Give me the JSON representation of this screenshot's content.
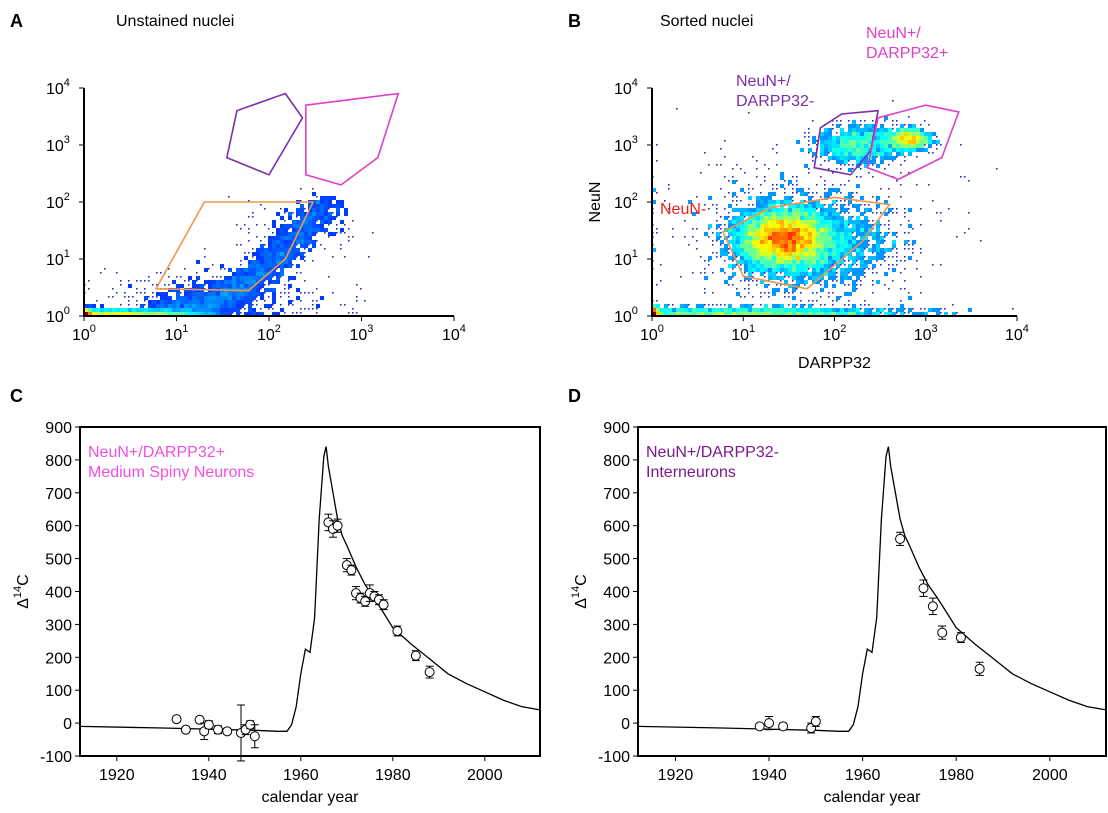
{
  "panels": {
    "A": {
      "letter": "A",
      "title": "Unstained nuclei"
    },
    "B": {
      "letter": "B",
      "title": "Sorted nuclei"
    },
    "C": {
      "letter": "C"
    },
    "D": {
      "letter": "D"
    }
  },
  "colors": {
    "orange_gate": "#f0964a",
    "purple_gate": "#7b2fa8",
    "magenta_gate": "#e040c8",
    "neun_minus": "#e8231c",
    "msn_label": "#f050e0",
    "interneuron_label": "#7a1a8a"
  },
  "chart_data": [
    {
      "panel": "A",
      "type": "scatter",
      "subtype": "flow-cytometry density plot",
      "x_scale": "log",
      "y_scale": "log",
      "xlim": [
        1,
        10000
      ],
      "ylim": [
        1,
        10000
      ],
      "x_ticks": [
        {
          "base": "10",
          "exp": "0"
        },
        {
          "base": "10",
          "exp": "1"
        },
        {
          "base": "10",
          "exp": "2"
        },
        {
          "base": "10",
          "exp": "3"
        },
        {
          "base": "10",
          "exp": "4"
        }
      ],
      "y_ticks": [
        {
          "base": "10",
          "exp": "0"
        },
        {
          "base": "10",
          "exp": "1"
        },
        {
          "base": "10",
          "exp": "2"
        },
        {
          "base": "10",
          "exp": "3"
        },
        {
          "base": "10",
          "exp": "4"
        }
      ],
      "xlabel": "",
      "ylabel": "",
      "gates": [
        {
          "color": "orange",
          "points": [
            [
              20,
              100
            ],
            [
              300,
              100
            ],
            [
              150,
              10
            ],
            [
              60,
              2.8
            ],
            [
              6,
              3
            ]
          ]
        },
        {
          "color": "purple",
          "points": [
            [
              150,
              8000
            ],
            [
              230,
              3000
            ],
            [
              100,
              300
            ],
            [
              35,
              600
            ],
            [
              45,
              4000
            ]
          ]
        },
        {
          "color": "magenta",
          "points": [
            [
              250,
              5000
            ],
            [
              2500,
              8000
            ],
            [
              1500,
              600
            ],
            [
              600,
              200
            ],
            [
              250,
              300
            ]
          ]
        }
      ]
    },
    {
      "panel": "B",
      "type": "scatter",
      "subtype": "flow-cytometry density plot",
      "x_scale": "log",
      "y_scale": "log",
      "xlim": [
        1,
        10000
      ],
      "ylim": [
        1,
        10000
      ],
      "x_ticks": [
        {
          "base": "10",
          "exp": "0"
        },
        {
          "base": "10",
          "exp": "1"
        },
        {
          "base": "10",
          "exp": "2"
        },
        {
          "base": "10",
          "exp": "3"
        },
        {
          "base": "10",
          "exp": "4"
        }
      ],
      "y_ticks": [
        {
          "base": "10",
          "exp": "0"
        },
        {
          "base": "10",
          "exp": "1"
        },
        {
          "base": "10",
          "exp": "2"
        },
        {
          "base": "10",
          "exp": "3"
        },
        {
          "base": "10",
          "exp": "4"
        }
      ],
      "xlabel": "DARPP32",
      "ylabel": "NeuN",
      "gate_labels": [
        {
          "text": "NeuN-",
          "color": "red"
        },
        {
          "text": "NeuN+/",
          "text2": "DARPP32-",
          "color": "purple"
        },
        {
          "text": "NeuN+/",
          "text2": "DARPP32+",
          "color": "magenta"
        }
      ],
      "gates": [
        {
          "color": "orange",
          "points": [
            [
              20,
              80
            ],
            [
              100,
              120
            ],
            [
              400,
              90
            ],
            [
              200,
              20
            ],
            [
              50,
              3
            ],
            [
              10,
              5
            ],
            [
              6,
              30
            ]
          ]
        },
        {
          "color": "purple",
          "points": [
            [
              120,
              3500
            ],
            [
              300,
              4000
            ],
            [
              250,
              800
            ],
            [
              150,
              300
            ],
            [
              60,
              400
            ],
            [
              70,
              2000
            ]
          ]
        },
        {
          "color": "magenta",
          "points": [
            [
              300,
              3000
            ],
            [
              1000,
              5000
            ],
            [
              2300,
              3800
            ],
            [
              1500,
              600
            ],
            [
              500,
              250
            ],
            [
              230,
              400
            ]
          ]
        }
      ]
    },
    {
      "panel": "C",
      "type": "scatter",
      "annotation_lines": [
        "NeuN+/DARPP32+",
        "Medium Spiny Neurons"
      ],
      "xlabel": "calendar year",
      "ylabel": "Δ",
      "ylabel_sup": "14",
      "ylabel_tail": "C",
      "xlim": [
        1912,
        2012
      ],
      "ylim": [
        -100,
        900
      ],
      "x_ticks": [
        "1920",
        "1940",
        "1960",
        "1980",
        "2000"
      ],
      "y_ticks": [
        "-100",
        "0",
        "100",
        "200",
        "300",
        "400",
        "500",
        "600",
        "700",
        "800",
        "900"
      ],
      "series": [
        {
          "curve": true,
          "x": [
            1912,
            1930,
            1950,
            1955,
            1957,
            1958,
            1959,
            1960,
            1961,
            1962,
            1963,
            1964,
            1965,
            1965.5,
            1966,
            1967,
            1968,
            1969,
            1970,
            1972,
            1974,
            1976,
            1978,
            1980,
            1984,
            1988,
            1992,
            1996,
            2000,
            2004,
            2008,
            2012
          ],
          "y": [
            -10,
            -15,
            -22,
            -25,
            -25,
            -5,
            50,
            150,
            225,
            215,
            320,
            620,
            810,
            840,
            780,
            700,
            620,
            570,
            540,
            475,
            420,
            380,
            335,
            290,
            240,
            195,
            150,
            120,
            95,
            70,
            50,
            40
          ]
        },
        {
          "points": true,
          "x": [
            1933,
            1935,
            1938,
            1939,
            1940,
            1942,
            1944,
            1947,
            1948,
            1949,
            1950,
            1966,
            1967,
            1968,
            1970,
            1971,
            1972,
            1973,
            1974,
            1975,
            1976,
            1977,
            1978,
            1981,
            1985,
            1988
          ],
          "y": [
            12,
            -20,
            10,
            -25,
            -5,
            -20,
            -25,
            -30,
            -20,
            -5,
            -40,
            610,
            590,
            600,
            480,
            465,
            395,
            380,
            370,
            395,
            385,
            375,
            360,
            280,
            205,
            155
          ],
          "err": [
            8,
            8,
            8,
            25,
            12,
            12,
            8,
            85,
            15,
            12,
            35,
            25,
            25,
            20,
            20,
            15,
            20,
            15,
            15,
            25,
            15,
            15,
            15,
            15,
            15,
            18
          ]
        }
      ]
    },
    {
      "panel": "D",
      "type": "scatter",
      "annotation_lines": [
        "NeuN+/DARPP32-",
        "Interneurons"
      ],
      "xlabel": "calendar year",
      "ylabel": "Δ",
      "ylabel_sup": "14",
      "ylabel_tail": "C",
      "xlim": [
        1912,
        2012
      ],
      "ylim": [
        -100,
        900
      ],
      "x_ticks": [
        "1920",
        "1940",
        "1960",
        "1980",
        "2000"
      ],
      "y_ticks": [
        "-100",
        "0",
        "100",
        "200",
        "300",
        "400",
        "500",
        "600",
        "700",
        "800",
        "900"
      ],
      "series": [
        {
          "curve": true,
          "x": [
            1912,
            1930,
            1950,
            1955,
            1957,
            1958,
            1959,
            1960,
            1961,
            1962,
            1963,
            1964,
            1965,
            1965.5,
            1966,
            1967,
            1968,
            1969,
            1970,
            1972,
            1974,
            1976,
            1978,
            1980,
            1984,
            1988,
            1992,
            1996,
            2000,
            2004,
            2008,
            2012
          ],
          "y": [
            -10,
            -15,
            -22,
            -25,
            -25,
            -5,
            50,
            150,
            225,
            215,
            320,
            620,
            810,
            840,
            780,
            700,
            620,
            570,
            540,
            475,
            420,
            380,
            335,
            290,
            240,
            195,
            150,
            120,
            95,
            70,
            50,
            40
          ]
        },
        {
          "points": true,
          "x": [
            1938,
            1940,
            1943,
            1949,
            1950,
            1968,
            1973,
            1975,
            1977,
            1981,
            1985
          ],
          "y": [
            -10,
            0,
            -10,
            -15,
            5,
            560,
            410,
            355,
            275,
            260,
            165
          ],
          "err": [
            8,
            20,
            10,
            15,
            15,
            20,
            25,
            25,
            20,
            15,
            20
          ]
        }
      ]
    }
  ]
}
